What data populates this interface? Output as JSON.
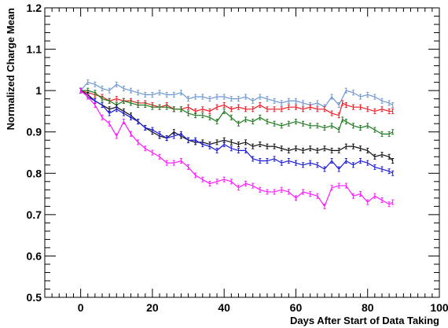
{
  "chart_data": {
    "type": "line",
    "title": "",
    "xlabel": "Days After Start of Data Taking",
    "ylabel": "Normalized Charge Mean",
    "xlim": [
      -10,
      100
    ],
    "ylim": [
      0.5,
      1.2
    ],
    "x_ticks": [
      0,
      20,
      40,
      60,
      80,
      100
    ],
    "y_ticks": [
      0.5,
      0.6,
      0.7,
      0.8,
      0.9,
      1,
      1.1,
      1.2
    ],
    "x_tick_labels": [
      "0",
      "20",
      "40",
      "60",
      "80",
      "100"
    ],
    "y_tick_labels": [
      "0.5",
      "0.6",
      "0.7",
      "0.8",
      "0.9",
      "1",
      "1.1",
      "1.2"
    ],
    "grid": false,
    "legend": "none",
    "error_bars": true,
    "series": [
      {
        "color": "#6e97d2",
        "points": [
          [
            0,
            1.0
          ],
          [
            2,
            1.02
          ],
          [
            4,
            1.015
          ],
          [
            6,
            1.005
          ],
          [
            8,
            1.0
          ],
          [
            10,
            1.015
          ],
          [
            12,
            1.005
          ],
          [
            14,
            1.0
          ],
          [
            16,
            0.995
          ],
          [
            18,
            0.99
          ],
          [
            20,
            0.99
          ],
          [
            22,
            0.995
          ],
          [
            24,
            0.99
          ],
          [
            26,
            0.99
          ],
          [
            28,
            0.995
          ],
          [
            30,
            0.98
          ],
          [
            32,
            0.985
          ],
          [
            34,
            0.985
          ],
          [
            36,
            0.98
          ],
          [
            38,
            0.985
          ],
          [
            40,
            0.985
          ],
          [
            42,
            0.98
          ],
          [
            44,
            0.98
          ],
          [
            46,
            0.985
          ],
          [
            48,
            0.975
          ],
          [
            50,
            0.985
          ],
          [
            52,
            0.98
          ],
          [
            54,
            0.975
          ],
          [
            56,
            0.97
          ],
          [
            58,
            0.975
          ],
          [
            60,
            0.975
          ],
          [
            62,
            0.97
          ],
          [
            64,
            0.965
          ],
          [
            66,
            0.97
          ],
          [
            68,
            0.96
          ],
          [
            70,
            0.985
          ],
          [
            72,
            0.965
          ],
          [
            74,
            1.0
          ],
          [
            76,
            0.995
          ],
          [
            78,
            0.985
          ],
          [
            80,
            0.99
          ],
          [
            82,
            0.985
          ],
          [
            84,
            0.975
          ],
          [
            86,
            0.97
          ],
          [
            87,
            0.965
          ]
        ]
      },
      {
        "color": "#ee1c24",
        "points": [
          [
            0,
            1.0
          ],
          [
            2,
            0.995
          ],
          [
            4,
            0.99
          ],
          [
            6,
            0.985
          ],
          [
            8,
            0.975
          ],
          [
            10,
            0.98
          ],
          [
            12,
            0.975
          ],
          [
            14,
            0.975
          ],
          [
            16,
            0.97
          ],
          [
            18,
            0.97
          ],
          [
            20,
            0.965
          ],
          [
            22,
            0.96
          ],
          [
            24,
            0.965
          ],
          [
            26,
            0.955
          ],
          [
            28,
            0.955
          ],
          [
            30,
            0.96
          ],
          [
            32,
            0.95
          ],
          [
            34,
            0.955
          ],
          [
            36,
            0.95
          ],
          [
            38,
            0.96
          ],
          [
            40,
            0.965
          ],
          [
            42,
            0.955
          ],
          [
            44,
            0.96
          ],
          [
            46,
            0.955
          ],
          [
            48,
            0.955
          ],
          [
            50,
            0.965
          ],
          [
            52,
            0.955
          ],
          [
            54,
            0.955
          ],
          [
            56,
            0.955
          ],
          [
            58,
            0.96
          ],
          [
            60,
            0.96
          ],
          [
            62,
            0.955
          ],
          [
            64,
            0.96
          ],
          [
            66,
            0.955
          ],
          [
            68,
            0.955
          ],
          [
            70,
            0.945
          ],
          [
            72,
            0.94
          ],
          [
            73,
            0.97
          ],
          [
            74,
            0.965
          ],
          [
            76,
            0.96
          ],
          [
            78,
            0.96
          ],
          [
            80,
            0.955
          ],
          [
            82,
            0.95
          ],
          [
            84,
            0.955
          ],
          [
            86,
            0.95
          ],
          [
            87,
            0.95
          ]
        ]
      },
      {
        "color": "#1f7a1f",
        "points": [
          [
            0,
            1.0
          ],
          [
            2,
            1.0
          ],
          [
            4,
            0.995
          ],
          [
            6,
            0.98
          ],
          [
            8,
            0.975
          ],
          [
            10,
            0.965
          ],
          [
            12,
            0.975
          ],
          [
            14,
            0.97
          ],
          [
            16,
            0.965
          ],
          [
            18,
            0.965
          ],
          [
            20,
            0.96
          ],
          [
            22,
            0.96
          ],
          [
            24,
            0.96
          ],
          [
            26,
            0.955
          ],
          [
            28,
            0.955
          ],
          [
            30,
            0.945
          ],
          [
            32,
            0.94
          ],
          [
            34,
            0.94
          ],
          [
            36,
            0.935
          ],
          [
            38,
            0.925
          ],
          [
            40,
            0.95
          ],
          [
            42,
            0.935
          ],
          [
            44,
            0.92
          ],
          [
            46,
            0.93
          ],
          [
            48,
            0.925
          ],
          [
            50,
            0.935
          ],
          [
            52,
            0.925
          ],
          [
            54,
            0.92
          ],
          [
            56,
            0.915
          ],
          [
            58,
            0.92
          ],
          [
            60,
            0.925
          ],
          [
            62,
            0.92
          ],
          [
            64,
            0.915
          ],
          [
            66,
            0.915
          ],
          [
            68,
            0.91
          ],
          [
            70,
            0.915
          ],
          [
            72,
            0.905
          ],
          [
            73,
            0.93
          ],
          [
            74,
            0.925
          ],
          [
            76,
            0.915
          ],
          [
            78,
            0.91
          ],
          [
            80,
            0.915
          ],
          [
            82,
            0.905
          ],
          [
            84,
            0.895
          ],
          [
            86,
            0.895
          ],
          [
            87,
            0.9
          ]
        ]
      },
      {
        "color": "#111111",
        "points": [
          [
            0,
            1.0
          ],
          [
            2,
            0.99
          ],
          [
            4,
            0.975
          ],
          [
            6,
            0.965
          ],
          [
            8,
            0.955
          ],
          [
            10,
            0.96
          ],
          [
            12,
            0.95
          ],
          [
            14,
            0.94
          ],
          [
            16,
            0.925
          ],
          [
            18,
            0.91
          ],
          [
            20,
            0.9
          ],
          [
            22,
            0.89
          ],
          [
            24,
            0.885
          ],
          [
            26,
            0.9
          ],
          [
            28,
            0.89
          ],
          [
            30,
            0.88
          ],
          [
            32,
            0.875
          ],
          [
            34,
            0.875
          ],
          [
            36,
            0.87
          ],
          [
            38,
            0.875
          ],
          [
            40,
            0.88
          ],
          [
            42,
            0.875
          ],
          [
            44,
            0.87
          ],
          [
            46,
            0.875
          ],
          [
            48,
            0.865
          ],
          [
            50,
            0.87
          ],
          [
            52,
            0.865
          ],
          [
            54,
            0.865
          ],
          [
            56,
            0.86
          ],
          [
            58,
            0.855
          ],
          [
            60,
            0.86
          ],
          [
            62,
            0.855
          ],
          [
            64,
            0.86
          ],
          [
            66,
            0.855
          ],
          [
            68,
            0.86
          ],
          [
            70,
            0.855
          ],
          [
            72,
            0.855
          ],
          [
            74,
            0.865
          ],
          [
            76,
            0.865
          ],
          [
            78,
            0.86
          ],
          [
            80,
            0.855
          ],
          [
            82,
            0.84
          ],
          [
            84,
            0.845
          ],
          [
            86,
            0.84
          ],
          [
            87,
            0.83
          ]
        ]
      },
      {
        "color": "#1c1cd6",
        "points": [
          [
            0,
            1.0
          ],
          [
            2,
            0.985
          ],
          [
            4,
            0.975
          ],
          [
            6,
            0.965
          ],
          [
            8,
            0.945
          ],
          [
            10,
            0.955
          ],
          [
            12,
            0.945
          ],
          [
            14,
            0.935
          ],
          [
            16,
            0.925
          ],
          [
            18,
            0.91
          ],
          [
            20,
            0.905
          ],
          [
            22,
            0.895
          ],
          [
            24,
            0.885
          ],
          [
            26,
            0.89
          ],
          [
            28,
            0.895
          ],
          [
            30,
            0.88
          ],
          [
            32,
            0.88
          ],
          [
            34,
            0.87
          ],
          [
            36,
            0.865
          ],
          [
            38,
            0.855
          ],
          [
            40,
            0.87
          ],
          [
            42,
            0.86
          ],
          [
            44,
            0.855
          ],
          [
            46,
            0.855
          ],
          [
            48,
            0.835
          ],
          [
            50,
            0.83
          ],
          [
            52,
            0.83
          ],
          [
            54,
            0.835
          ],
          [
            56,
            0.825
          ],
          [
            58,
            0.83
          ],
          [
            60,
            0.825
          ],
          [
            62,
            0.82
          ],
          [
            64,
            0.825
          ],
          [
            66,
            0.82
          ],
          [
            68,
            0.81
          ],
          [
            70,
            0.83
          ],
          [
            72,
            0.81
          ],
          [
            74,
            0.83
          ],
          [
            76,
            0.82
          ],
          [
            78,
            0.83
          ],
          [
            80,
            0.825
          ],
          [
            82,
            0.815
          ],
          [
            84,
            0.81
          ],
          [
            86,
            0.805
          ],
          [
            87,
            0.8
          ]
        ]
      },
      {
        "color": "#ff1aff",
        "points": [
          [
            0,
            1.0
          ],
          [
            2,
            0.985
          ],
          [
            4,
            0.965
          ],
          [
            6,
            0.935
          ],
          [
            8,
            0.92
          ],
          [
            10,
            0.89
          ],
          [
            12,
            0.925
          ],
          [
            14,
            0.895
          ],
          [
            16,
            0.875
          ],
          [
            18,
            0.86
          ],
          [
            20,
            0.85
          ],
          [
            22,
            0.84
          ],
          [
            24,
            0.825
          ],
          [
            26,
            0.825
          ],
          [
            28,
            0.83
          ],
          [
            30,
            0.815
          ],
          [
            32,
            0.795
          ],
          [
            34,
            0.785
          ],
          [
            36,
            0.775
          ],
          [
            38,
            0.78
          ],
          [
            40,
            0.785
          ],
          [
            42,
            0.78
          ],
          [
            44,
            0.765
          ],
          [
            46,
            0.775
          ],
          [
            48,
            0.77
          ],
          [
            50,
            0.76
          ],
          [
            52,
            0.755
          ],
          [
            54,
            0.755
          ],
          [
            56,
            0.76
          ],
          [
            58,
            0.755
          ],
          [
            60,
            0.74
          ],
          [
            62,
            0.755
          ],
          [
            64,
            0.75
          ],
          [
            66,
            0.745
          ],
          [
            68,
            0.72
          ],
          [
            70,
            0.765
          ],
          [
            72,
            0.77
          ],
          [
            74,
            0.77
          ],
          [
            76,
            0.745
          ],
          [
            78,
            0.75
          ],
          [
            80,
            0.73
          ],
          [
            82,
            0.745
          ],
          [
            84,
            0.735
          ],
          [
            86,
            0.725
          ],
          [
            87,
            0.73
          ]
        ]
      }
    ]
  }
}
